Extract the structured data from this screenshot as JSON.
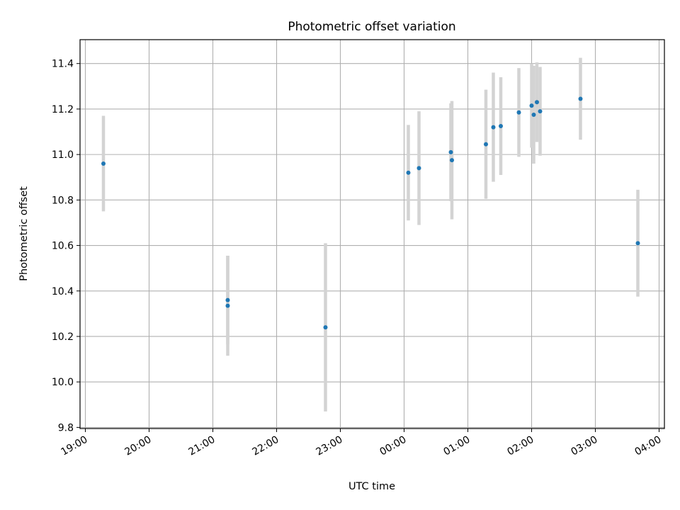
{
  "chart_data": {
    "type": "scatter",
    "title": "Photometric offset variation",
    "xlabel": "UTC time",
    "ylabel": "Photometric offset",
    "xlim": [
      "18:55",
      "28:05"
    ],
    "ylim": [
      9.795,
      11.505
    ],
    "grid": true,
    "x_ticks": [
      {
        "t": "19:00",
        "label": "19:00"
      },
      {
        "t": "20:00",
        "label": "20:00"
      },
      {
        "t": "21:00",
        "label": "21:00"
      },
      {
        "t": "22:00",
        "label": "22:00"
      },
      {
        "t": "23:00",
        "label": "23:00"
      },
      {
        "t": "24:00",
        "label": "00:00"
      },
      {
        "t": "25:00",
        "label": "01:00"
      },
      {
        "t": "26:00",
        "label": "02:00"
      },
      {
        "t": "27:00",
        "label": "03:00"
      },
      {
        "t": "28:00",
        "label": "04:00"
      }
    ],
    "y_ticks": [
      9.8,
      10.0,
      10.2,
      10.4,
      10.6,
      10.8,
      11.0,
      11.2,
      11.4
    ],
    "y_tick_labels": [
      "9.8",
      "10.0",
      "10.2",
      "10.4",
      "10.6",
      "10.8",
      "11.0",
      "11.2",
      "11.4"
    ],
    "series": [
      {
        "points": [
          {
            "t": "19:17",
            "y": 10.96,
            "err": 0.21
          },
          {
            "t": "21:14",
            "y": 10.36,
            "err": 0.195
          },
          {
            "t": "21:14",
            "y": 10.335,
            "err": 0.22
          },
          {
            "t": "22:46",
            "y": 10.24,
            "err": 0.37
          },
          {
            "t": "24:04",
            "y": 10.92,
            "err": 0.21
          },
          {
            "t": "24:14",
            "y": 10.94,
            "err": 0.25
          },
          {
            "t": "24:44",
            "y": 11.01,
            "err": 0.215
          },
          {
            "t": "24:45",
            "y": 10.975,
            "err": 0.26
          },
          {
            "t": "25:17",
            "y": 11.045,
            "err": 0.24
          },
          {
            "t": "25:24",
            "y": 11.12,
            "err": 0.24
          },
          {
            "t": "25:31",
            "y": 11.125,
            "err": 0.215
          },
          {
            "t": "25:48",
            "y": 11.185,
            "err": 0.195
          },
          {
            "t": "26:00",
            "y": 11.215,
            "err": 0.185
          },
          {
            "t": "26:02",
            "y": 11.175,
            "err": 0.215
          },
          {
            "t": "26:05",
            "y": 11.23,
            "err": 0.175
          },
          {
            "t": "26:08",
            "y": 11.19,
            "err": 0.195
          },
          {
            "t": "26:46",
            "y": 11.245,
            "err": 0.18
          },
          {
            "t": "27:40",
            "y": 10.61,
            "err": 0.235
          }
        ]
      }
    ],
    "colors": {
      "marker": "#1f77b4",
      "errorbar": "#d3d3d3",
      "grid": "#b0b0b0",
      "axis": "#000000"
    }
  }
}
